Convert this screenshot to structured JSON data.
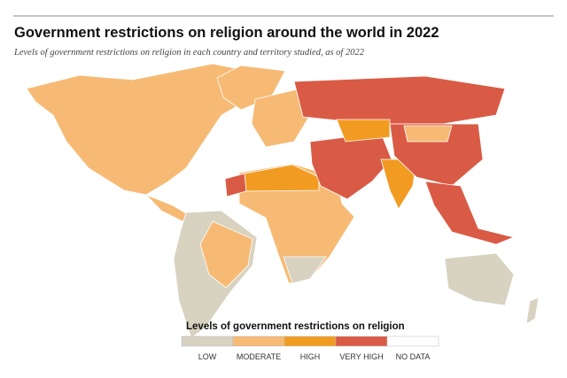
{
  "header": {
    "title": "Government restrictions on religion around the world in 2022",
    "subtitle": "Levels of government restrictions on religion in each country and territory studied, as of 2022"
  },
  "legend": {
    "title": "Levels of government restrictions on religion",
    "items": [
      {
        "label": "LOW",
        "color": "#d8d2c1"
      },
      {
        "label": "MODERATE",
        "color": "#f6ba74"
      },
      {
        "label": "HIGH",
        "color": "#f29b22"
      },
      {
        "label": "VERY HIGH",
        "color": "#d95b45"
      },
      {
        "label": "NO DATA",
        "color": "#ffffff"
      }
    ]
  }
}
